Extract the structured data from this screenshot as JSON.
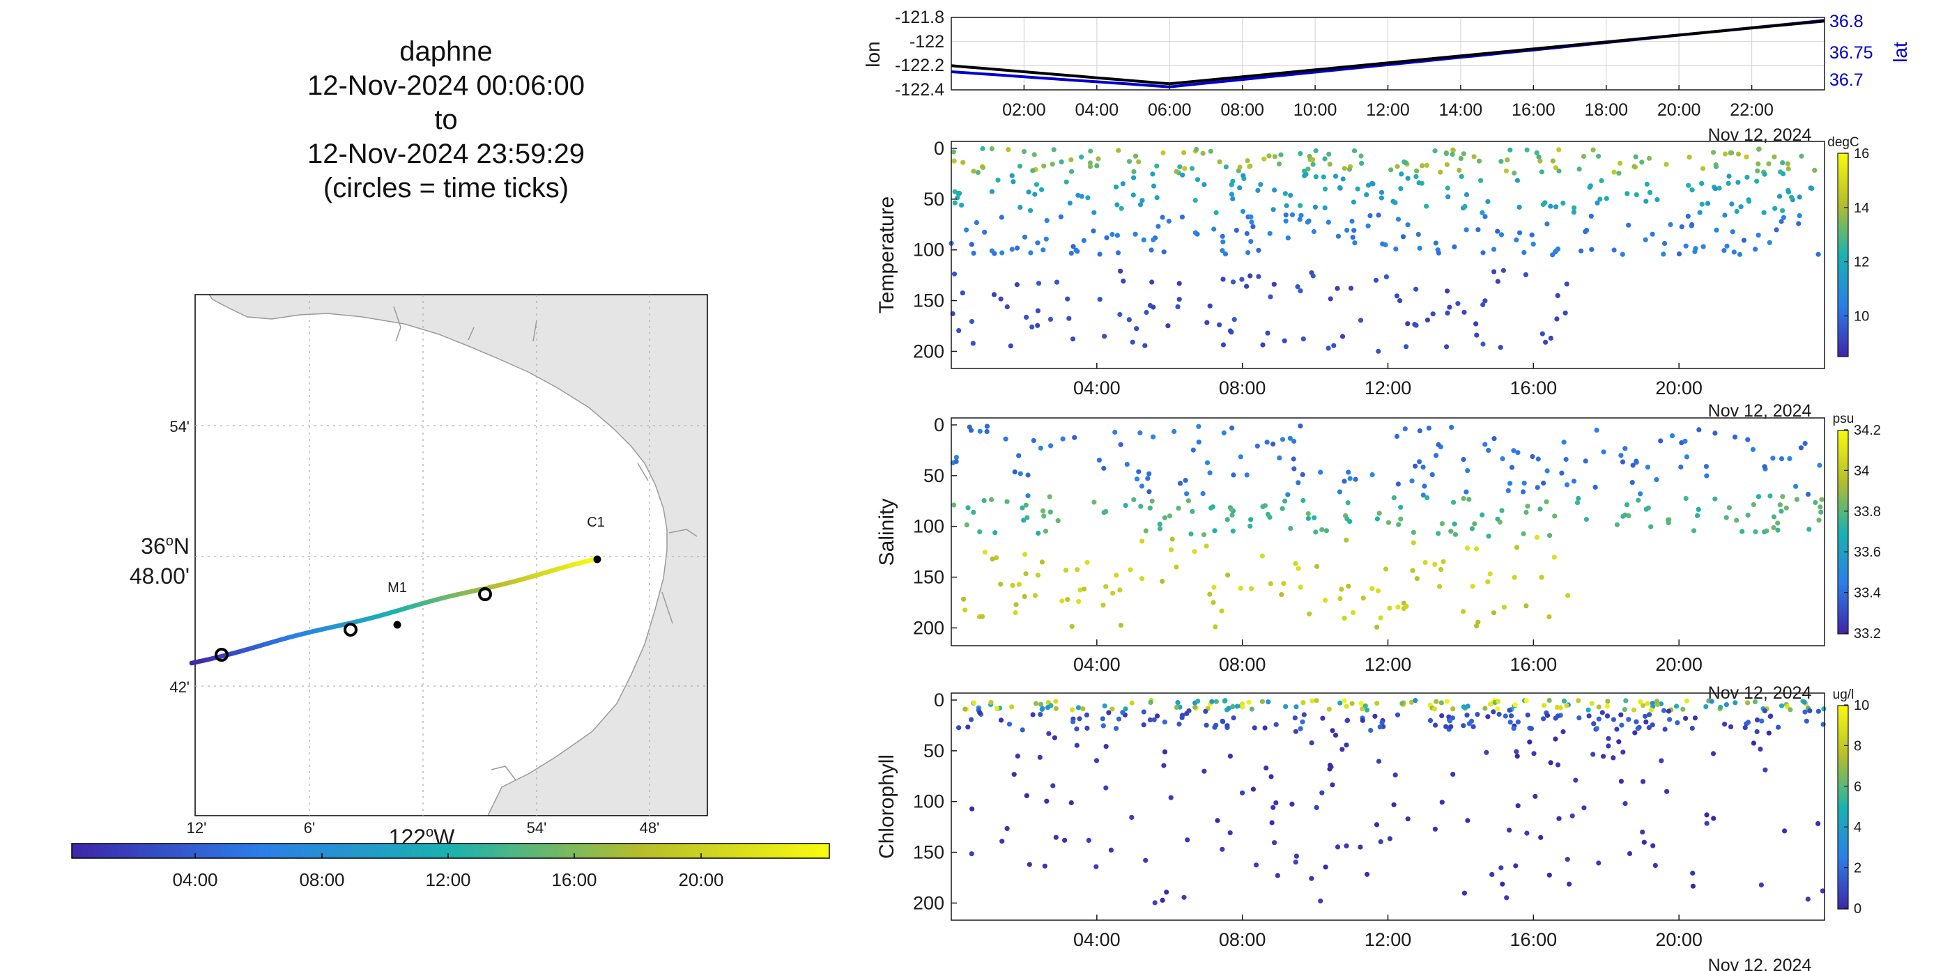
{
  "header": {
    "vehicle": "daphne",
    "start": "12-Nov-2024 00:06:00",
    "to_word": "to",
    "end": "12-Nov-2024 23:59:29",
    "note": "(circles = time ticks)"
  },
  "map": {
    "lat_ticks": [
      "54'",
      "42'"
    ],
    "lat_center_deg": "36",
    "lat_center_min": "48.00'",
    "lat_center_unit": "N",
    "lon_ticks": [
      "12'",
      "6'",
      "54'",
      "48'"
    ],
    "lon_center_deg": "122",
    "lon_center_unit": "W",
    "stations": [
      {
        "name": "C1",
        "lon": -121.85,
        "lat": 36.8
      },
      {
        "name": "M1",
        "lon": -122.03,
        "lat": 36.75
      }
    ],
    "colorbar_ticks": [
      "04:00",
      "08:00",
      "12:00",
      "16:00",
      "20:00"
    ],
    "colors": {
      "land": "#e5e5e5",
      "coast": "#9a9a9a",
      "grid": "#b0b0b0"
    }
  },
  "chart_data": [
    {
      "type": "line",
      "name": "lon-lat",
      "x": [
        0,
        6,
        24
      ],
      "series": [
        {
          "name": "lon",
          "values": [
            -122.2,
            -122.35,
            -121.83
          ],
          "color": "#000000"
        },
        {
          "name": "lat",
          "values": [
            36.71,
            36.685,
            36.795
          ],
          "color": "#0000cc"
        }
      ],
      "ylabel": "lon",
      "ylabel_right": "lat",
      "yticks": [
        "-121.8",
        "-122",
        "-122.2",
        "-122.4"
      ],
      "yticks_right": [
        "36.8",
        "36.75",
        "36.7"
      ],
      "xticks": [
        "02:00",
        "04:00",
        "06:00",
        "08:00",
        "10:00",
        "12:00",
        "14:00",
        "16:00",
        "18:00",
        "20:00",
        "22:00"
      ],
      "xlabel": "Nov 12, 2024",
      "ylim": [
        -122.4,
        -121.8
      ],
      "ylim_right": [
        36.68,
        36.8
      ],
      "grid": true
    },
    {
      "type": "scatter",
      "name": "temperature",
      "ylabel": "Temperature",
      "unit": "degC",
      "yticks": [
        "0",
        "50",
        "100",
        "150",
        "200"
      ],
      "xticks": [
        "04:00",
        "08:00",
        "12:00",
        "16:00",
        "20:00"
      ],
      "xlabel": "Nov 12, 2024",
      "ylim": [
        0,
        210
      ],
      "clim": [
        8.5,
        16
      ],
      "cticks": [
        "16",
        "14",
        "12",
        "10"
      ],
      "bands": [
        {
          "from": 0,
          "to": 24,
          "depth_min": 0,
          "depth_max": 25,
          "v_min": 12.5,
          "v_max": 14.5
        },
        {
          "from": 0,
          "to": 24,
          "depth_min": 25,
          "depth_max": 65,
          "v_min": 11,
          "v_max": 12.5
        },
        {
          "from": 0,
          "to": 24,
          "depth_min": 65,
          "depth_max": 105,
          "v_min": 9.8,
          "v_max": 10.8
        },
        {
          "from": 0,
          "to": 17.2,
          "depth_min": 120,
          "depth_max": 200,
          "v_min": 9,
          "v_max": 9.6
        }
      ]
    },
    {
      "type": "scatter",
      "name": "salinity",
      "ylabel": "Salinity",
      "unit": "psu",
      "yticks": [
        "0",
        "50",
        "100",
        "150",
        "200"
      ],
      "xticks": [
        "04:00",
        "08:00",
        "12:00",
        "16:00",
        "20:00"
      ],
      "xlabel": "Nov 12, 2024",
      "ylim": [
        0,
        210
      ],
      "clim": [
        33.2,
        34.2
      ],
      "cticks": [
        "34.2",
        "34",
        "33.8",
        "33.6",
        "33.4",
        "33.2"
      ],
      "bands": [
        {
          "from": 0,
          "to": 24,
          "depth_min": 0,
          "depth_max": 70,
          "v_min": 33.35,
          "v_max": 33.5
        },
        {
          "from": 0,
          "to": 24,
          "depth_min": 70,
          "depth_max": 110,
          "v_min": 33.7,
          "v_max": 33.85
        },
        {
          "from": 0,
          "to": 17.2,
          "depth_min": 110,
          "depth_max": 200,
          "v_min": 33.95,
          "v_max": 34.1
        }
      ]
    },
    {
      "type": "scatter",
      "name": "chlorophyll",
      "ylabel": "Chlorophyll",
      "unit": "ug/l",
      "yticks": [
        "0",
        "50",
        "100",
        "150",
        "200"
      ],
      "xticks": [
        "04:00",
        "08:00",
        "12:00",
        "16:00",
        "20:00"
      ],
      "xlabel": "Nov 12, 2024",
      "ylim": [
        0,
        210
      ],
      "clim": [
        0,
        10
      ],
      "cticks": [
        "10",
        "8",
        "6",
        "4",
        "2",
        "0"
      ],
      "bands": [
        {
          "from": 0,
          "to": 24,
          "depth_min": 0,
          "depth_max": 10,
          "v_min": 3,
          "v_max": 10
        },
        {
          "from": 0,
          "to": 24,
          "depth_min": 10,
          "depth_max": 30,
          "v_min": 0.3,
          "v_max": 2
        },
        {
          "from": 0,
          "to": 24,
          "depth_min": 30,
          "depth_max": 200,
          "v_min": 0,
          "v_max": 0.8
        }
      ]
    }
  ]
}
